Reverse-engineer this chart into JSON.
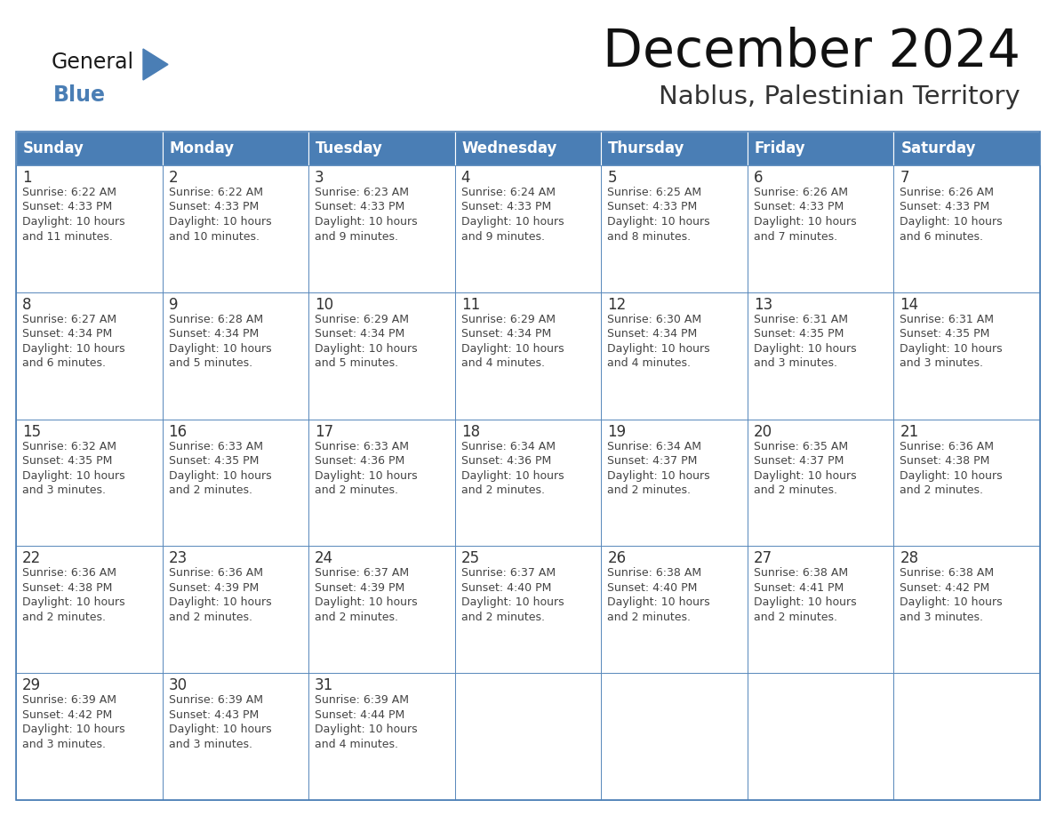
{
  "title": "December 2024",
  "subtitle": "Nablus, Palestinian Territory",
  "header_bg_color": "#4a7eb5",
  "header_text_color": "#ffffff",
  "cell_border_color": "#4a7eb5",
  "day_number_color": "#333333",
  "cell_text_color": "#444444",
  "bg_color": "#ffffff",
  "days_of_week": [
    "Sunday",
    "Monday",
    "Tuesday",
    "Wednesday",
    "Thursday",
    "Friday",
    "Saturday"
  ],
  "weeks": [
    [
      {
        "day": 1,
        "sunrise": "6:22 AM",
        "sunset": "4:33 PM",
        "daylight_h": "10 hours",
        "daylight_m": "and 11 minutes."
      },
      {
        "day": 2,
        "sunrise": "6:22 AM",
        "sunset": "4:33 PM",
        "daylight_h": "10 hours",
        "daylight_m": "and 10 minutes."
      },
      {
        "day": 3,
        "sunrise": "6:23 AM",
        "sunset": "4:33 PM",
        "daylight_h": "10 hours",
        "daylight_m": "and 9 minutes."
      },
      {
        "day": 4,
        "sunrise": "6:24 AM",
        "sunset": "4:33 PM",
        "daylight_h": "10 hours",
        "daylight_m": "and 9 minutes."
      },
      {
        "day": 5,
        "sunrise": "6:25 AM",
        "sunset": "4:33 PM",
        "daylight_h": "10 hours",
        "daylight_m": "and 8 minutes."
      },
      {
        "day": 6,
        "sunrise": "6:26 AM",
        "sunset": "4:33 PM",
        "daylight_h": "10 hours",
        "daylight_m": "and 7 minutes."
      },
      {
        "day": 7,
        "sunrise": "6:26 AM",
        "sunset": "4:33 PM",
        "daylight_h": "10 hours",
        "daylight_m": "and 6 minutes."
      }
    ],
    [
      {
        "day": 8,
        "sunrise": "6:27 AM",
        "sunset": "4:34 PM",
        "daylight_h": "10 hours",
        "daylight_m": "and 6 minutes."
      },
      {
        "day": 9,
        "sunrise": "6:28 AM",
        "sunset": "4:34 PM",
        "daylight_h": "10 hours",
        "daylight_m": "and 5 minutes."
      },
      {
        "day": 10,
        "sunrise": "6:29 AM",
        "sunset": "4:34 PM",
        "daylight_h": "10 hours",
        "daylight_m": "and 5 minutes."
      },
      {
        "day": 11,
        "sunrise": "6:29 AM",
        "sunset": "4:34 PM",
        "daylight_h": "10 hours",
        "daylight_m": "and 4 minutes."
      },
      {
        "day": 12,
        "sunrise": "6:30 AM",
        "sunset": "4:34 PM",
        "daylight_h": "10 hours",
        "daylight_m": "and 4 minutes."
      },
      {
        "day": 13,
        "sunrise": "6:31 AM",
        "sunset": "4:35 PM",
        "daylight_h": "10 hours",
        "daylight_m": "and 3 minutes."
      },
      {
        "day": 14,
        "sunrise": "6:31 AM",
        "sunset": "4:35 PM",
        "daylight_h": "10 hours",
        "daylight_m": "and 3 minutes."
      }
    ],
    [
      {
        "day": 15,
        "sunrise": "6:32 AM",
        "sunset": "4:35 PM",
        "daylight_h": "10 hours",
        "daylight_m": "and 3 minutes."
      },
      {
        "day": 16,
        "sunrise": "6:33 AM",
        "sunset": "4:35 PM",
        "daylight_h": "10 hours",
        "daylight_m": "and 2 minutes."
      },
      {
        "day": 17,
        "sunrise": "6:33 AM",
        "sunset": "4:36 PM",
        "daylight_h": "10 hours",
        "daylight_m": "and 2 minutes."
      },
      {
        "day": 18,
        "sunrise": "6:34 AM",
        "sunset": "4:36 PM",
        "daylight_h": "10 hours",
        "daylight_m": "and 2 minutes."
      },
      {
        "day": 19,
        "sunrise": "6:34 AM",
        "sunset": "4:37 PM",
        "daylight_h": "10 hours",
        "daylight_m": "and 2 minutes."
      },
      {
        "day": 20,
        "sunrise": "6:35 AM",
        "sunset": "4:37 PM",
        "daylight_h": "10 hours",
        "daylight_m": "and 2 minutes."
      },
      {
        "day": 21,
        "sunrise": "6:36 AM",
        "sunset": "4:38 PM",
        "daylight_h": "10 hours",
        "daylight_m": "and 2 minutes."
      }
    ],
    [
      {
        "day": 22,
        "sunrise": "6:36 AM",
        "sunset": "4:38 PM",
        "daylight_h": "10 hours",
        "daylight_m": "and 2 minutes."
      },
      {
        "day": 23,
        "sunrise": "6:36 AM",
        "sunset": "4:39 PM",
        "daylight_h": "10 hours",
        "daylight_m": "and 2 minutes."
      },
      {
        "day": 24,
        "sunrise": "6:37 AM",
        "sunset": "4:39 PM",
        "daylight_h": "10 hours",
        "daylight_m": "and 2 minutes."
      },
      {
        "day": 25,
        "sunrise": "6:37 AM",
        "sunset": "4:40 PM",
        "daylight_h": "10 hours",
        "daylight_m": "and 2 minutes."
      },
      {
        "day": 26,
        "sunrise": "6:38 AM",
        "sunset": "4:40 PM",
        "daylight_h": "10 hours",
        "daylight_m": "and 2 minutes."
      },
      {
        "day": 27,
        "sunrise": "6:38 AM",
        "sunset": "4:41 PM",
        "daylight_h": "10 hours",
        "daylight_m": "and 2 minutes."
      },
      {
        "day": 28,
        "sunrise": "6:38 AM",
        "sunset": "4:42 PM",
        "daylight_h": "10 hours",
        "daylight_m": "and 3 minutes."
      }
    ],
    [
      {
        "day": 29,
        "sunrise": "6:39 AM",
        "sunset": "4:42 PM",
        "daylight_h": "10 hours",
        "daylight_m": "and 3 minutes."
      },
      {
        "day": 30,
        "sunrise": "6:39 AM",
        "sunset": "4:43 PM",
        "daylight_h": "10 hours",
        "daylight_m": "and 3 minutes."
      },
      {
        "day": 31,
        "sunrise": "6:39 AM",
        "sunset": "4:44 PM",
        "daylight_h": "10 hours",
        "daylight_m": "and 4 minutes."
      },
      null,
      null,
      null,
      null
    ]
  ]
}
